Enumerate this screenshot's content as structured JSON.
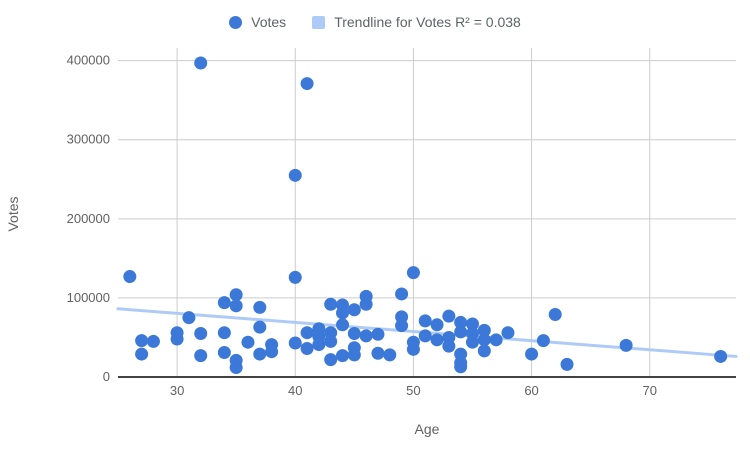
{
  "legend": {
    "series_label": "Votes",
    "trendline_label": "Trendline for Votes R² = 0.038"
  },
  "colors": {
    "point": "#3C78D8",
    "trendline": "#AECBF7",
    "grid": "#CCCCCC",
    "axis_line": "#424242",
    "tick_text": "#616161",
    "label_text": "#5F6368"
  },
  "chart_data": {
    "type": "scatter",
    "title": "",
    "xlabel": "Age",
    "ylabel": "Votes",
    "xlim": [
      25,
      77.3
    ],
    "ylim": [
      0,
      416000
    ],
    "x_ticks": [
      30,
      40,
      50,
      60,
      70
    ],
    "x_tick_labels": [
      "30",
      "40",
      "50",
      "60",
      "70"
    ],
    "y_ticks": [
      0,
      100000,
      200000,
      300000,
      400000
    ],
    "y_tick_labels": [
      "0",
      "100000",
      "200000",
      "300000",
      "400000"
    ],
    "grid": true,
    "legend_position": "top",
    "series": [
      {
        "name": "Votes",
        "points": [
          [
            26,
            127000
          ],
          [
            27,
            46000
          ],
          [
            27,
            29000
          ],
          [
            28,
            45000
          ],
          [
            30,
            56000
          ],
          [
            30,
            48000
          ],
          [
            31,
            75000
          ],
          [
            32,
            397000
          ],
          [
            32,
            55000
          ],
          [
            32,
            27000
          ],
          [
            34,
            94000
          ],
          [
            34,
            56000
          ],
          [
            34,
            31000
          ],
          [
            35,
            104000
          ],
          [
            35,
            90000
          ],
          [
            35,
            21000
          ],
          [
            35,
            12000
          ],
          [
            36,
            44000
          ],
          [
            37,
            88000
          ],
          [
            37,
            63000
          ],
          [
            37,
            29000
          ],
          [
            38,
            41000
          ],
          [
            38,
            32000
          ],
          [
            40,
            255000
          ],
          [
            40,
            126000
          ],
          [
            40,
            43000
          ],
          [
            41,
            371000
          ],
          [
            41,
            56000
          ],
          [
            41,
            36000
          ],
          [
            42,
            61000
          ],
          [
            42,
            51000
          ],
          [
            42,
            41000
          ],
          [
            43,
            92000
          ],
          [
            43,
            56000
          ],
          [
            43,
            45000
          ],
          [
            43,
            22000
          ],
          [
            44,
            91000
          ],
          [
            44,
            81000
          ],
          [
            44,
            66000
          ],
          [
            44,
            27000
          ],
          [
            45,
            85000
          ],
          [
            45,
            55000
          ],
          [
            45,
            37000
          ],
          [
            45,
            28000
          ],
          [
            46,
            102000
          ],
          [
            46,
            92000
          ],
          [
            46,
            52000
          ],
          [
            47,
            54000
          ],
          [
            47,
            30000
          ],
          [
            48,
            28000
          ],
          [
            49,
            105000
          ],
          [
            49,
            76000
          ],
          [
            49,
            65000
          ],
          [
            50,
            132000
          ],
          [
            50,
            44000
          ],
          [
            50,
            35000
          ],
          [
            51,
            71000
          ],
          [
            51,
            52000
          ],
          [
            52,
            66000
          ],
          [
            52,
            47000
          ],
          [
            53,
            77000
          ],
          [
            53,
            50000
          ],
          [
            53,
            39000
          ],
          [
            54,
            69000
          ],
          [
            54,
            57000
          ],
          [
            54,
            29000
          ],
          [
            54,
            18000
          ],
          [
            54,
            13000
          ],
          [
            55,
            67000
          ],
          [
            55,
            55000
          ],
          [
            55,
            44000
          ],
          [
            56,
            59000
          ],
          [
            56,
            47000
          ],
          [
            56,
            33000
          ],
          [
            57,
            47000
          ],
          [
            58,
            56000
          ],
          [
            60,
            29000
          ],
          [
            61,
            46000
          ],
          [
            62,
            79000
          ],
          [
            63,
            16000
          ],
          [
            68,
            40000
          ],
          [
            76,
            26000
          ]
        ]
      }
    ],
    "trendline": {
      "label": "Trendline for Votes R² = 0.038",
      "r_squared": 0.038,
      "x_start": 25,
      "y_start": 86300,
      "x_end": 77.3,
      "y_end": 26000
    }
  }
}
